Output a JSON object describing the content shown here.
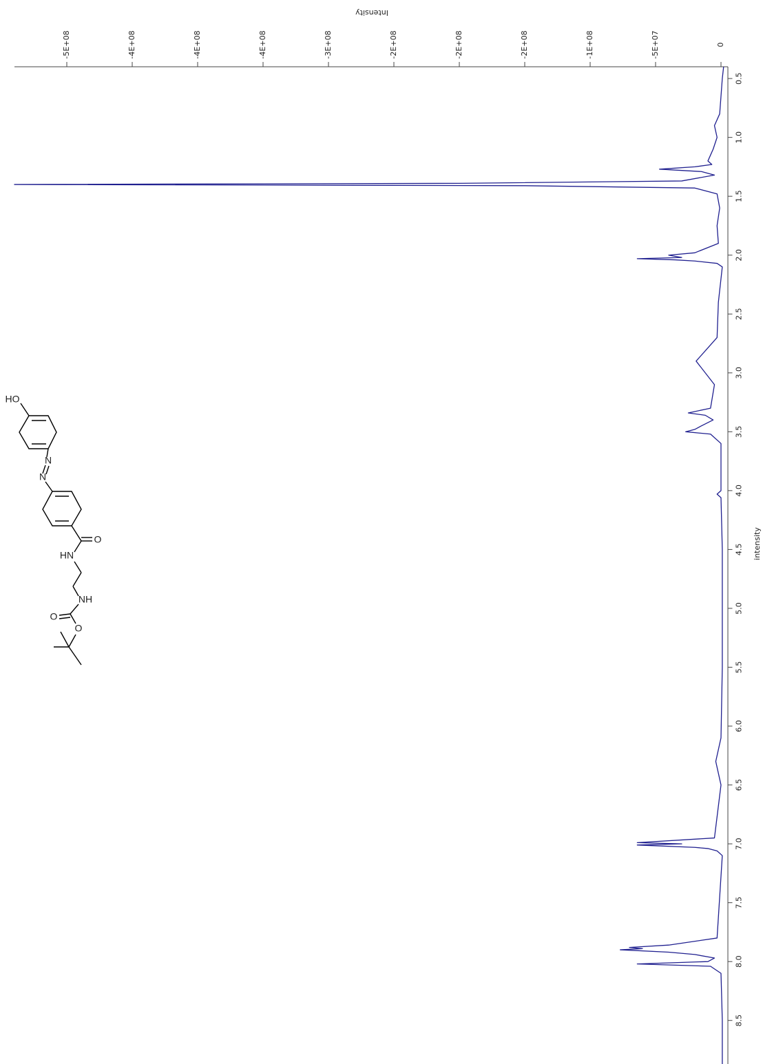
{
  "chart_data": {
    "type": "line",
    "orientation": "rotated",
    "y_label": "Intensity",
    "x_label": "intensity",
    "color": "#1f1f8f",
    "xlim": [
      0.4,
      8.87
    ],
    "xticks": [
      0.5,
      {
        "value": 1,
        "label": "1.0"
      },
      1.5,
      {
        "value": 2,
        "label": "2.0"
      },
      2.5,
      {
        "value": 3,
        "label": "3.0"
      },
      3.5,
      {
        "value": 4,
        "label": "4.0"
      },
      4.5,
      {
        "value": 5,
        "label": "5.0"
      },
      5.5,
      {
        "value": 6,
        "label": "6.0"
      },
      6.5,
      {
        "value": 7,
        "label": "7.0"
      },
      7.5,
      {
        "value": 8,
        "label": "8.0"
      },
      8.5
    ],
    "ylim": [
      -540000000,
      5000000
    ],
    "yticks": [
      {
        "value": -500000000,
        "label": "-5E+08"
      },
      {
        "value": -450000000,
        "label": "-4E+08"
      },
      {
        "value": -400000000,
        "label": "-4E+08"
      },
      {
        "value": -350000000,
        "label": "-4E+08"
      },
      {
        "value": -300000000,
        "label": "-3E+08"
      },
      {
        "value": -250000000,
        "label": "-2E+08"
      },
      {
        "value": -200000000,
        "label": "-2E+08"
      },
      {
        "value": -150000000,
        "label": "-2E+08"
      },
      {
        "value": -100000000,
        "label": "-1E+08"
      },
      {
        "value": -50000000,
        "label": "-5E+07"
      },
      0
    ],
    "x": [
      0.4,
      0.5,
      0.8,
      0.9,
      1.0,
      1.1,
      1.15,
      1.2,
      1.23,
      1.25,
      1.27,
      1.29,
      1.32,
      1.37,
      1.39,
      1.4,
      1.41,
      1.43,
      1.48,
      1.6,
      1.75,
      1.9,
      1.98,
      2.0,
      2.02,
      2.03,
      2.04,
      2.05,
      2.07,
      2.1,
      2.4,
      2.7,
      2.9,
      3.1,
      3.3,
      3.34,
      3.36,
      3.4,
      3.45,
      3.48,
      3.5,
      3.52,
      3.6,
      4.0,
      4.03,
      4.06,
      4.5,
      5.5,
      6.1,
      6.3,
      6.5,
      6.95,
      6.99,
      7.0,
      7.01,
      7.03,
      7.04,
      7.06,
      7.1,
      7.8,
      7.86,
      7.88,
      7.89,
      7.9,
      7.92,
      7.94,
      7.97,
      8.0,
      8.02,
      8.04,
      8.1,
      8.5,
      8.87
    ],
    "values": [
      2000000,
      1000000,
      -1000000,
      -5000000,
      -3000000,
      -6000000,
      -8000000,
      -10000000,
      -7000000,
      -20000000,
      -47000000,
      -15000000,
      -5000000,
      -30000000,
      -200000000,
      -540000000,
      -150000000,
      -20000000,
      -3000000,
      -1000000,
      -3000000,
      -2000000,
      -20000000,
      -40000000,
      -30000000,
      -64000000,
      -35000000,
      -20000000,
      -3000000,
      1000000,
      -2000000,
      -3000000,
      -19000000,
      -5000000,
      -8000000,
      -25000000,
      -12000000,
      -6000000,
      -15000000,
      -20000000,
      -27000000,
      -8000000,
      0,
      0,
      -3000000,
      0,
      1000000,
      1000000,
      0,
      -4000000,
      0,
      -5000000,
      -64000000,
      -30000000,
      -64000000,
      -20000000,
      -10000000,
      -3000000,
      1000000,
      -3000000,
      -40000000,
      -70000000,
      -60000000,
      -77000000,
      -40000000,
      -20000000,
      -5000000,
      -10000000,
      -64000000,
      -8000000,
      0,
      1000000,
      1000000
    ]
  },
  "structure": {
    "labels": [
      "HO",
      "N",
      "N",
      "O",
      "HN",
      "NH",
      "O",
      "O"
    ]
  }
}
